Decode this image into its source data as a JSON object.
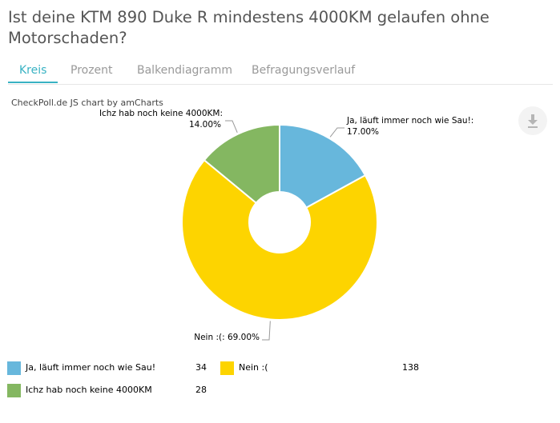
{
  "page": {
    "title": "Ist deine KTM 890 Duke R mindestens 4000KM gelaufen ohne Motorschaden?"
  },
  "tabs": [
    {
      "label": "Kreis",
      "active": true
    },
    {
      "label": "Prozent",
      "active": false
    },
    {
      "label": "Balkendiagramm",
      "active": false
    },
    {
      "label": "Befragungsverlauf",
      "active": false
    }
  ],
  "credit": "CheckPoll.de JS chart by amCharts",
  "export_icon": "download-icon",
  "chart_data": {
    "type": "pie",
    "donut": true,
    "slices": [
      {
        "label": "Ja, läuft immer noch wie Sau!",
        "value": 34,
        "percent_label": "17.00%",
        "color": "#67b7dc"
      },
      {
        "label": "Nein :(",
        "value": 138,
        "percent_label": "69.00%",
        "color": "#fdd400"
      },
      {
        "label": "Ichz hab noch keine 4000KM",
        "value": 28,
        "percent_label": "14.00%",
        "color": "#84b761"
      }
    ],
    "slice_labels": [
      "Ja, läuft immer noch wie Sau!:",
      "Nein :(:",
      "Ichz hab noch keine 4000KM:"
    ],
    "legend_position": "bottom"
  }
}
